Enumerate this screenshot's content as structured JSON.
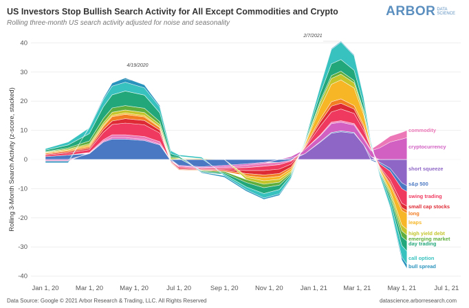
{
  "header": {
    "title": "US Investors Stop Bullish Search Activity for All Except Commodities and Crypto",
    "subtitle": "Rolling three-month US search activity adjusted for noise and seasonality",
    "logo_text": "ARBOR",
    "logo_sub1": "DATA",
    "logo_sub2": "SCIENCE",
    "logo_color": "#5b8fbf"
  },
  "footer": {
    "source": "Data Source: Google © 2021 Arbor Research & Trading, LLC. All Rights Reserved",
    "site": "datascience.arborresearch.com"
  },
  "chart_data": {
    "type": "area",
    "stacked": true,
    "title": "US Investors Stop Bullish Search Activity for All Except Commodities and Crypto",
    "subtitle": "Rolling three-month US search activity adjusted for noise and seasonality",
    "xlabel": "",
    "ylabel": "Rolling 3-Month Search Activity (z-score, stacked)",
    "ylim": [
      -40,
      40
    ],
    "yticks": [
      40,
      30,
      20,
      10,
      0,
      -10,
      -20,
      -30,
      -40
    ],
    "xlim": [
      "2019-12-15",
      "2021-07-20"
    ],
    "xticks": [
      {
        "date": "2020-01-01",
        "label": "Jan 1, 20"
      },
      {
        "date": "2020-03-01",
        "label": "Mar 1, 20"
      },
      {
        "date": "2020-05-01",
        "label": "May 1, 20"
      },
      {
        "date": "2020-07-01",
        "label": "Jul 1, 20"
      },
      {
        "date": "2020-09-01",
        "label": "Sep 1, 20"
      },
      {
        "date": "2020-11-01",
        "label": "Nov 1, 20"
      },
      {
        "date": "2021-01-01",
        "label": "Jan 1, 21"
      },
      {
        "date": "2021-03-01",
        "label": "Mar 1, 21"
      },
      {
        "date": "2021-05-01",
        "label": "May 1, 21"
      },
      {
        "date": "2021-07-01",
        "label": "Jul 1, 21"
      }
    ],
    "grid": true,
    "legend": "right-end labels",
    "annotations": [
      {
        "date": "2020-04-19",
        "label": "4/19/2020"
      },
      {
        "date": "2021-02-07",
        "label": "2/7/2021"
      }
    ],
    "x": [
      "2020-01-01",
      "2020-02-01",
      "2020-03-01",
      "2020-03-20",
      "2020-04-01",
      "2020-04-19",
      "2020-05-15",
      "2020-06-05",
      "2020-06-20",
      "2020-07-01",
      "2020-08-01",
      "2020-09-01",
      "2020-10-01",
      "2020-10-25",
      "2020-11-15",
      "2020-12-01",
      "2020-12-20",
      "2021-01-10",
      "2021-01-25",
      "2021-02-07",
      "2021-02-25",
      "2021-03-10",
      "2021-03-20",
      "2021-04-01",
      "2021-04-15",
      "2021-05-01",
      "2021-05-08"
    ],
    "series": [
      {
        "name": "short squeeze",
        "color": "#8e66c6",
        "values": [
          0,
          0,
          0,
          0,
          0,
          0,
          0,
          0,
          0,
          0,
          0,
          0,
          0,
          0,
          0,
          0.5,
          2,
          6,
          9,
          9.5,
          9,
          5,
          1,
          -1,
          -3,
          -8,
          -9
        ]
      },
      {
        "name": "s&p 500",
        "color": "#4a78c2",
        "values": [
          1,
          1.5,
          2,
          6,
          7,
          7,
          6.5,
          5,
          -0.5,
          -2,
          -2.5,
          -2,
          -1.5,
          -1,
          -1,
          -0.3,
          0,
          0.2,
          0.3,
          0.3,
          0.3,
          0,
          -0.3,
          -0.5,
          -1,
          -2,
          -2
        ]
      },
      {
        "name": "cryptocurrency",
        "color": "#d160c2",
        "values": [
          -0.3,
          -0.3,
          0.2,
          0.3,
          0.5,
          0.5,
          0.4,
          0.3,
          0,
          -0.3,
          -0.3,
          -0.5,
          -0.5,
          -0.3,
          0,
          0.5,
          1.5,
          2,
          3,
          3,
          2.5,
          2,
          2,
          4,
          6,
          7,
          7.5
        ]
      },
      {
        "name": "commodity",
        "color": "#ec78b8",
        "values": [
          -0.3,
          -0.3,
          0.2,
          0.5,
          1,
          1,
          1,
          0.8,
          0,
          -0.3,
          -0.3,
          -0.5,
          -0.8,
          -1,
          -0.8,
          -0.3,
          0,
          0.3,
          0.5,
          0.5,
          0.5,
          0.5,
          0.5,
          1.5,
          2,
          2.3,
          2.5
        ]
      },
      {
        "name": "swing trading",
        "color": "#f0395f",
        "values": [
          0.5,
          0.7,
          1,
          2.5,
          3.5,
          4,
          4,
          3,
          -0.3,
          -0.5,
          -0.3,
          -0.5,
          -1,
          -1.5,
          -1.5,
          -1,
          0.5,
          3,
          3.5,
          4,
          3.5,
          2.5,
          0.5,
          -1,
          -3,
          -5,
          -5
        ]
      },
      {
        "name": "small cap stocks",
        "color": "#de2a35",
        "values": [
          0.3,
          0.4,
          0.5,
          1,
          1.2,
          1.5,
          1.5,
          1,
          -0.2,
          -0.3,
          -0.2,
          -0.3,
          -1,
          -1.5,
          -1.5,
          -1,
          0.3,
          1.5,
          2,
          2,
          1.5,
          1,
          0,
          -0.3,
          -1,
          -1.5,
          -1.5
        ]
      },
      {
        "name": "long",
        "color": "#f27d22",
        "values": [
          0.3,
          0.4,
          0.5,
          1,
          1.5,
          1.5,
          1.2,
          0.8,
          -0.2,
          -0.2,
          -0.2,
          -0.3,
          -0.8,
          -1,
          -1,
          -0.6,
          0.3,
          1,
          1.5,
          1.5,
          1.2,
          0.8,
          0,
          -0.3,
          -0.7,
          -1,
          -1
        ]
      },
      {
        "name": "leaps",
        "color": "#f6b626",
        "values": [
          0.2,
          0.3,
          0.5,
          0.5,
          0.5,
          0.5,
          0.5,
          0.3,
          0,
          0.2,
          0.3,
          0,
          -0.5,
          -1,
          -1,
          -0.8,
          0.5,
          4,
          6,
          6.5,
          6,
          3.5,
          0.5,
          -0.5,
          -2,
          -5,
          -5.5
        ]
      },
      {
        "name": "high yield debt",
        "color": "#c3c52b",
        "values": [
          0.2,
          0.3,
          0.5,
          0.8,
          1,
          1,
          1,
          0.8,
          0.5,
          0.2,
          0,
          0,
          -0.8,
          -1.2,
          -1,
          -0.5,
          0.3,
          1.5,
          2,
          2,
          1.8,
          1,
          0,
          -0.3,
          -1,
          -2,
          -2
        ]
      },
      {
        "name": "emerging market",
        "color": "#5fae3d",
        "values": [
          0.2,
          0.4,
          1,
          1.5,
          1.5,
          1.5,
          1.5,
          1,
          0.5,
          0.2,
          -0.2,
          -0.5,
          -1,
          -1.2,
          -1,
          -0.5,
          0.3,
          0.8,
          1,
          1,
          0.8,
          0.5,
          0,
          -0.3,
          -1,
          -2,
          -2
        ]
      },
      {
        "name": "day trading",
        "color": "#22a77a",
        "values": [
          0.5,
          1,
          2.5,
          4,
          4.5,
          5,
          4.5,
          3,
          1,
          0.5,
          -0.3,
          -0.5,
          -1.5,
          -2,
          -1.5,
          -0.5,
          0.5,
          2.5,
          4,
          4,
          3.5,
          2,
          0.5,
          -0.5,
          -1.5,
          -3,
          -3.5
        ]
      },
      {
        "name": "call option",
        "color": "#38c2bf",
        "values": [
          0.5,
          1,
          2,
          2.5,
          3,
          3,
          2.5,
          2,
          1,
          0.5,
          0.5,
          -0.5,
          -1,
          -1.5,
          -1.5,
          -0.8,
          0.5,
          2.5,
          5,
          6,
          5,
          2.5,
          1,
          -1,
          -2,
          -4,
          -4.5
        ]
      },
      {
        "name": "bull spread",
        "color": "#2a93bd",
        "values": [
          -0.5,
          -0.5,
          0.3,
          0.5,
          1,
          1.5,
          1,
          0.5,
          0.2,
          0,
          -0.3,
          -0.5,
          -0.5,
          -0.5,
          -0.5,
          -0.3,
          0,
          0.2,
          0.3,
          0.3,
          0.3,
          0.2,
          0,
          -0.2,
          -0.5,
          -1,
          -1.5
        ]
      }
    ]
  }
}
